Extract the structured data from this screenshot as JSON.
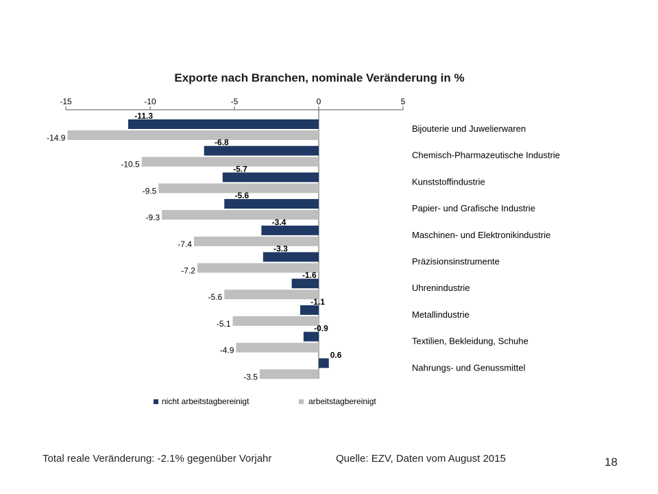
{
  "chart_data": {
    "type": "bar",
    "orientation": "horizontal",
    "title": "Exporte nach Branchen, nominale Veränderung in %",
    "xlim": [
      -15,
      5
    ],
    "xticks": [
      -15,
      -10,
      -5,
      0,
      5
    ],
    "xtick_labels": [
      "-15",
      "-10",
      "-5",
      "0",
      "5"
    ],
    "axis_position": "top",
    "grid": false,
    "legend_position": "bottom",
    "categories": [
      "Bijouterie und Juwelierwaren",
      "Chemisch-Pharmazeutische Industrie",
      "Kunststoffindustrie",
      "Papier- und Grafische Industrie",
      "Maschinen- und Elektronikindustrie",
      "Präzisionsinstrumente",
      "Uhrenindustrie",
      "Metallindustrie",
      "Textilien, Bekleidung, Schuhe",
      "Nahrungs- und Genussmittel"
    ],
    "series": [
      {
        "name": "nicht arbeitstagbereinigt",
        "color": "#1f3864",
        "values": [
          -11.3,
          -6.8,
          -5.7,
          -5.6,
          -3.4,
          -3.3,
          -1.6,
          -1.1,
          -0.9,
          0.6
        ],
        "labels": [
          "-11.3",
          "-6.8",
          "-5.7",
          "-5.6",
          "-3.4",
          "-3.3",
          "-1.6",
          "-1.1",
          "-0.9",
          "0.6"
        ]
      },
      {
        "name": "arbeitstagbereinigt",
        "color": "#bfbfbf",
        "values": [
          -14.9,
          -10.5,
          -9.5,
          -9.3,
          -7.4,
          -7.2,
          -5.6,
          -5.1,
          -4.9,
          -3.5
        ],
        "labels": [
          "-14.9",
          "-10.5",
          "-9.5",
          "-9.3",
          "-7.4",
          "-7.2",
          "-5.6",
          "-5.1",
          "-4.9",
          "-3.5"
        ]
      }
    ]
  },
  "footer": {
    "left": "Total reale Veränderung: -2.1% gegenüber Vorjahr",
    "right": "Quelle: EZV, Daten vom August 2015"
  },
  "page_number": "18"
}
